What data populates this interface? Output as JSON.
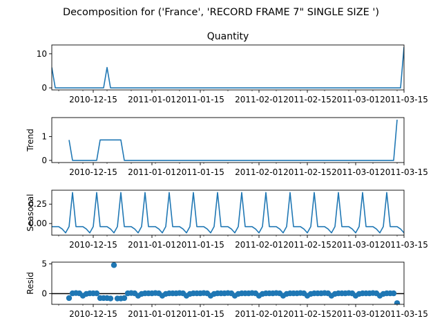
{
  "figure": {
    "suptitle": "Decomposition for ('France', 'RECORD FRAME 7\" SINGLE SIZE ')"
  },
  "chart_data": [
    {
      "type": "line",
      "panel": "observed",
      "title": "Quantity",
      "ylabel": "",
      "color": "#1f77b4",
      "x_range": [
        "2010-12-03",
        "2011-03-15"
      ],
      "xticks": [
        "2010-12-15",
        "2011-01-01",
        "2011-01-15",
        "2011-02-01",
        "2011-02-15",
        "2011-03-01",
        "2011-03-15"
      ],
      "yticks": [
        0,
        10
      ],
      "ylim": [
        -0.6,
        12.6
      ],
      "x": [
        "2010-12-03",
        "2010-12-04",
        "2010-12-05",
        "2010-12-06",
        "2010-12-07",
        "2010-12-08",
        "2010-12-09",
        "2010-12-10",
        "2010-12-11",
        "2010-12-12",
        "2010-12-13",
        "2010-12-14",
        "2010-12-15",
        "2010-12-16",
        "2010-12-17",
        "2010-12-18",
        "2010-12-19",
        "2010-12-20",
        "2010-12-21",
        "2010-12-22",
        "2010-12-23",
        "2010-12-24",
        "2010-12-25",
        "2010-12-26",
        "2010-12-27",
        "2010-12-28",
        "2010-12-29",
        "2010-12-30",
        "2010-12-31",
        "2011-01-01",
        "2011-01-02",
        "2011-01-03",
        "2011-01-04",
        "2011-01-05",
        "2011-01-06",
        "2011-01-07",
        "2011-01-08",
        "2011-01-09",
        "2011-01-10",
        "2011-01-11",
        "2011-01-12",
        "2011-01-13",
        "2011-01-14",
        "2011-01-15",
        "2011-01-16",
        "2011-01-17",
        "2011-01-18",
        "2011-01-19",
        "2011-01-20",
        "2011-01-21",
        "2011-01-22",
        "2011-01-23",
        "2011-01-24",
        "2011-01-25",
        "2011-01-26",
        "2011-01-27",
        "2011-01-28",
        "2011-01-29",
        "2011-01-30",
        "2011-01-31",
        "2011-02-01",
        "2011-02-02",
        "2011-02-03",
        "2011-02-04",
        "2011-02-05",
        "2011-02-06",
        "2011-02-07",
        "2011-02-08",
        "2011-02-09",
        "2011-02-10",
        "2011-02-11",
        "2011-02-12",
        "2011-02-13",
        "2011-02-14",
        "2011-02-15",
        "2011-02-16",
        "2011-02-17",
        "2011-02-18",
        "2011-02-19",
        "2011-02-20",
        "2011-02-21",
        "2011-02-22",
        "2011-02-23",
        "2011-02-24",
        "2011-02-25",
        "2011-02-26",
        "2011-02-27",
        "2011-02-28",
        "2011-03-01",
        "2011-03-02",
        "2011-03-03",
        "2011-03-04",
        "2011-03-05",
        "2011-03-06",
        "2011-03-07",
        "2011-03-08",
        "2011-03-09",
        "2011-03-10",
        "2011-03-11",
        "2011-03-12",
        "2011-03-13",
        "2011-03-14",
        "2011-03-15"
      ],
      "values": [
        6,
        0,
        0,
        0,
        0,
        0,
        0,
        0,
        0,
        0,
        0,
        0,
        0,
        0,
        0,
        0,
        6,
        0,
        0,
        0,
        0,
        0,
        0,
        0,
        0,
        0,
        0,
        0,
        0,
        0,
        0,
        0,
        0,
        0,
        0,
        0,
        0,
        0,
        0,
        0,
        0,
        0,
        0,
        0,
        0,
        0,
        0,
        0,
        0,
        0,
        0,
        0,
        0,
        0,
        0,
        0,
        0,
        0,
        0,
        0,
        0,
        0,
        0,
        0,
        0,
        0,
        0,
        0,
        0,
        0,
        0,
        0,
        0,
        0,
        0,
        0,
        0,
        0,
        0,
        0,
        0,
        0,
        0,
        0,
        0,
        0,
        0,
        0,
        0,
        0,
        0,
        0,
        0,
        0,
        0,
        0,
        0,
        0,
        0,
        0,
        0,
        0,
        12
      ]
    },
    {
      "type": "line",
      "panel": "trend",
      "title": "",
      "ylabel": "Trend",
      "color": "#1f77b4",
      "x_range": [
        "2010-12-03",
        "2011-03-15"
      ],
      "xticks": [
        "2010-12-15",
        "2011-01-01",
        "2011-01-15",
        "2011-02-01",
        "2011-02-15",
        "2011-03-01",
        "2011-03-15"
      ],
      "yticks": [
        0,
        1
      ],
      "ylim": [
        -0.09,
        1.8
      ],
      "x": [
        "2010-12-08",
        "2010-12-09",
        "2010-12-10",
        "2010-12-11",
        "2010-12-12",
        "2010-12-13",
        "2010-12-14",
        "2010-12-15",
        "2010-12-16",
        "2010-12-17",
        "2010-12-18",
        "2010-12-19",
        "2010-12-20",
        "2010-12-21",
        "2010-12-22",
        "2010-12-23",
        "2010-12-24",
        "2010-12-25",
        "2010-12-26",
        "2010-12-27",
        "2010-12-28",
        "2010-12-29",
        "2010-12-30",
        "2010-12-31",
        "2011-01-01",
        "2011-01-02",
        "2011-01-03",
        "2011-01-04",
        "2011-01-05",
        "2011-01-06",
        "2011-01-07",
        "2011-01-08",
        "2011-01-09",
        "2011-01-10",
        "2011-01-11",
        "2011-01-12",
        "2011-01-13",
        "2011-01-14",
        "2011-01-15",
        "2011-01-16",
        "2011-01-17",
        "2011-01-18",
        "2011-01-19",
        "2011-01-20",
        "2011-01-21",
        "2011-01-22",
        "2011-01-23",
        "2011-01-24",
        "2011-01-25",
        "2011-01-26",
        "2011-01-27",
        "2011-01-28",
        "2011-01-29",
        "2011-01-30",
        "2011-01-31",
        "2011-02-01",
        "2011-02-02",
        "2011-02-03",
        "2011-02-04",
        "2011-02-05",
        "2011-02-06",
        "2011-02-07",
        "2011-02-08",
        "2011-02-09",
        "2011-02-10",
        "2011-02-11",
        "2011-02-12",
        "2011-02-13",
        "2011-02-14",
        "2011-02-15",
        "2011-02-16",
        "2011-02-17",
        "2011-02-18",
        "2011-02-19",
        "2011-02-20",
        "2011-02-21",
        "2011-02-22",
        "2011-02-23",
        "2011-02-24",
        "2011-02-25",
        "2011-02-26",
        "2011-02-27",
        "2011-02-28",
        "2011-03-01",
        "2011-03-02",
        "2011-03-03",
        "2011-03-04",
        "2011-03-05",
        "2011-03-06",
        "2011-03-07",
        "2011-03-08",
        "2011-03-09",
        "2011-03-10",
        "2011-03-11",
        "2011-03-12",
        "2011-03-13"
      ],
      "values": [
        0.86,
        0,
        0,
        0,
        0,
        0,
        0,
        0,
        0,
        0.86,
        0.86,
        0.86,
        0.86,
        0.86,
        0.86,
        0.86,
        0,
        0,
        0,
        0,
        0,
        0,
        0,
        0,
        0,
        0,
        0,
        0,
        0,
        0,
        0,
        0,
        0,
        0,
        0,
        0,
        0,
        0,
        0,
        0,
        0,
        0,
        0,
        0,
        0,
        0,
        0,
        0,
        0,
        0,
        0,
        0,
        0,
        0,
        0,
        0,
        0,
        0,
        0,
        0,
        0,
        0,
        0,
        0,
        0,
        0,
        0,
        0,
        0,
        0,
        0,
        0,
        0,
        0,
        0,
        0,
        0,
        0,
        0,
        0,
        0,
        0,
        0,
        0,
        0,
        0,
        0,
        0,
        0,
        0,
        0,
        0,
        0,
        0,
        0,
        1.71
      ]
    },
    {
      "type": "line",
      "panel": "seasonal",
      "title": "",
      "ylabel": "Seasonal",
      "color": "#1f77b4",
      "x_range": [
        "2010-12-03",
        "2011-03-15"
      ],
      "xticks": [
        "2010-12-15",
        "2011-01-01",
        "2011-01-15",
        "2011-02-01",
        "2011-02-15",
        "2011-03-01",
        "2011-03-15"
      ],
      "yticks": [
        0.0,
        0.25
      ],
      "ylim": [
        -0.15,
        0.43
      ],
      "period_days": 7,
      "x_start": "2010-12-03",
      "x_end": "2011-03-15",
      "weekly_pattern": [
        -0.04,
        -0.04,
        -0.04,
        -0.07,
        -0.12,
        -0.04,
        0.4
      ],
      "values_note": ""
    },
    {
      "type": "scatter",
      "panel": "resid",
      "title": "",
      "ylabel": "Resid",
      "color": "#1f77b4",
      "baseline": 0,
      "x_range": [
        "2010-12-03",
        "2011-03-15"
      ],
      "xticks": [
        "2010-12-15",
        "2011-01-01",
        "2011-01-15",
        "2011-02-01",
        "2011-02-15",
        "2011-03-01",
        "2011-03-15"
      ],
      "yticks": [
        0,
        5
      ],
      "ylim": [
        -1.8,
        5.3
      ],
      "x": [
        "2010-12-08",
        "2010-12-09",
        "2010-12-10",
        "2010-12-11",
        "2010-12-12",
        "2010-12-13",
        "2010-12-14",
        "2010-12-15",
        "2010-12-16",
        "2010-12-17",
        "2010-12-18",
        "2010-12-19",
        "2010-12-20",
        "2010-12-21",
        "2010-12-22",
        "2010-12-23",
        "2010-12-24",
        "2010-12-25",
        "2010-12-26",
        "2010-12-27",
        "2010-12-28",
        "2010-12-29",
        "2010-12-30",
        "2010-12-31",
        "2011-01-01",
        "2011-01-02",
        "2011-01-03",
        "2011-01-04",
        "2011-01-05",
        "2011-01-06",
        "2011-01-07",
        "2011-01-08",
        "2011-01-09",
        "2011-01-10",
        "2011-01-11",
        "2011-01-12",
        "2011-01-13",
        "2011-01-14",
        "2011-01-15",
        "2011-01-16",
        "2011-01-17",
        "2011-01-18",
        "2011-01-19",
        "2011-01-20",
        "2011-01-21",
        "2011-01-22",
        "2011-01-23",
        "2011-01-24",
        "2011-01-25",
        "2011-01-26",
        "2011-01-27",
        "2011-01-28",
        "2011-01-29",
        "2011-01-30",
        "2011-01-31",
        "2011-02-01",
        "2011-02-02",
        "2011-02-03",
        "2011-02-04",
        "2011-02-05",
        "2011-02-06",
        "2011-02-07",
        "2011-02-08",
        "2011-02-09",
        "2011-02-10",
        "2011-02-11",
        "2011-02-12",
        "2011-02-13",
        "2011-02-14",
        "2011-02-15",
        "2011-02-16",
        "2011-02-17",
        "2011-02-18",
        "2011-02-19",
        "2011-02-20",
        "2011-02-21",
        "2011-02-22",
        "2011-02-23",
        "2011-02-24",
        "2011-02-25",
        "2011-02-26",
        "2011-02-27",
        "2011-02-28",
        "2011-03-01",
        "2011-03-02",
        "2011-03-03",
        "2011-03-04",
        "2011-03-05",
        "2011-03-06",
        "2011-03-07",
        "2011-03-08",
        "2011-03-09",
        "2011-03-10",
        "2011-03-11",
        "2011-03-12",
        "2011-03-13"
      ],
      "values": [
        -0.75,
        0.05,
        0.1,
        0.05,
        -0.35,
        -0.05,
        0.05,
        0.05,
        0.05,
        -0.75,
        -0.75,
        -0.75,
        -0.82,
        4.8,
        -0.82,
        -0.82,
        -0.75,
        0.05,
        0.1,
        0.05,
        -0.35,
        -0.05,
        0.05,
        0.05,
        0.05,
        0.1,
        0.05,
        -0.35,
        -0.05,
        0.05,
        0.05,
        0.05,
        0.1,
        0.05,
        -0.35,
        -0.05,
        0.05,
        0.05,
        0.05,
        0.1,
        0.05,
        -0.35,
        -0.05,
        0.05,
        0.05,
        0.05,
        0.1,
        0.05,
        -0.35,
        -0.05,
        0.05,
        0.05,
        0.05,
        0.1,
        0.05,
        -0.35,
        -0.05,
        0.05,
        0.05,
        0.05,
        0.1,
        0.05,
        -0.35,
        -0.05,
        0.05,
        0.05,
        0.05,
        0.1,
        0.05,
        -0.35,
        -0.05,
        0.05,
        0.05,
        0.05,
        0.1,
        0.05,
        -0.35,
        -0.05,
        0.05,
        0.05,
        0.05,
        0.1,
        0.05,
        -0.35,
        -0.05,
        0.05,
        0.05,
        0.05,
        0.1,
        0.05,
        -0.35,
        -0.05,
        0.05,
        0.05,
        0.05,
        -1.6
      ]
    }
  ]
}
